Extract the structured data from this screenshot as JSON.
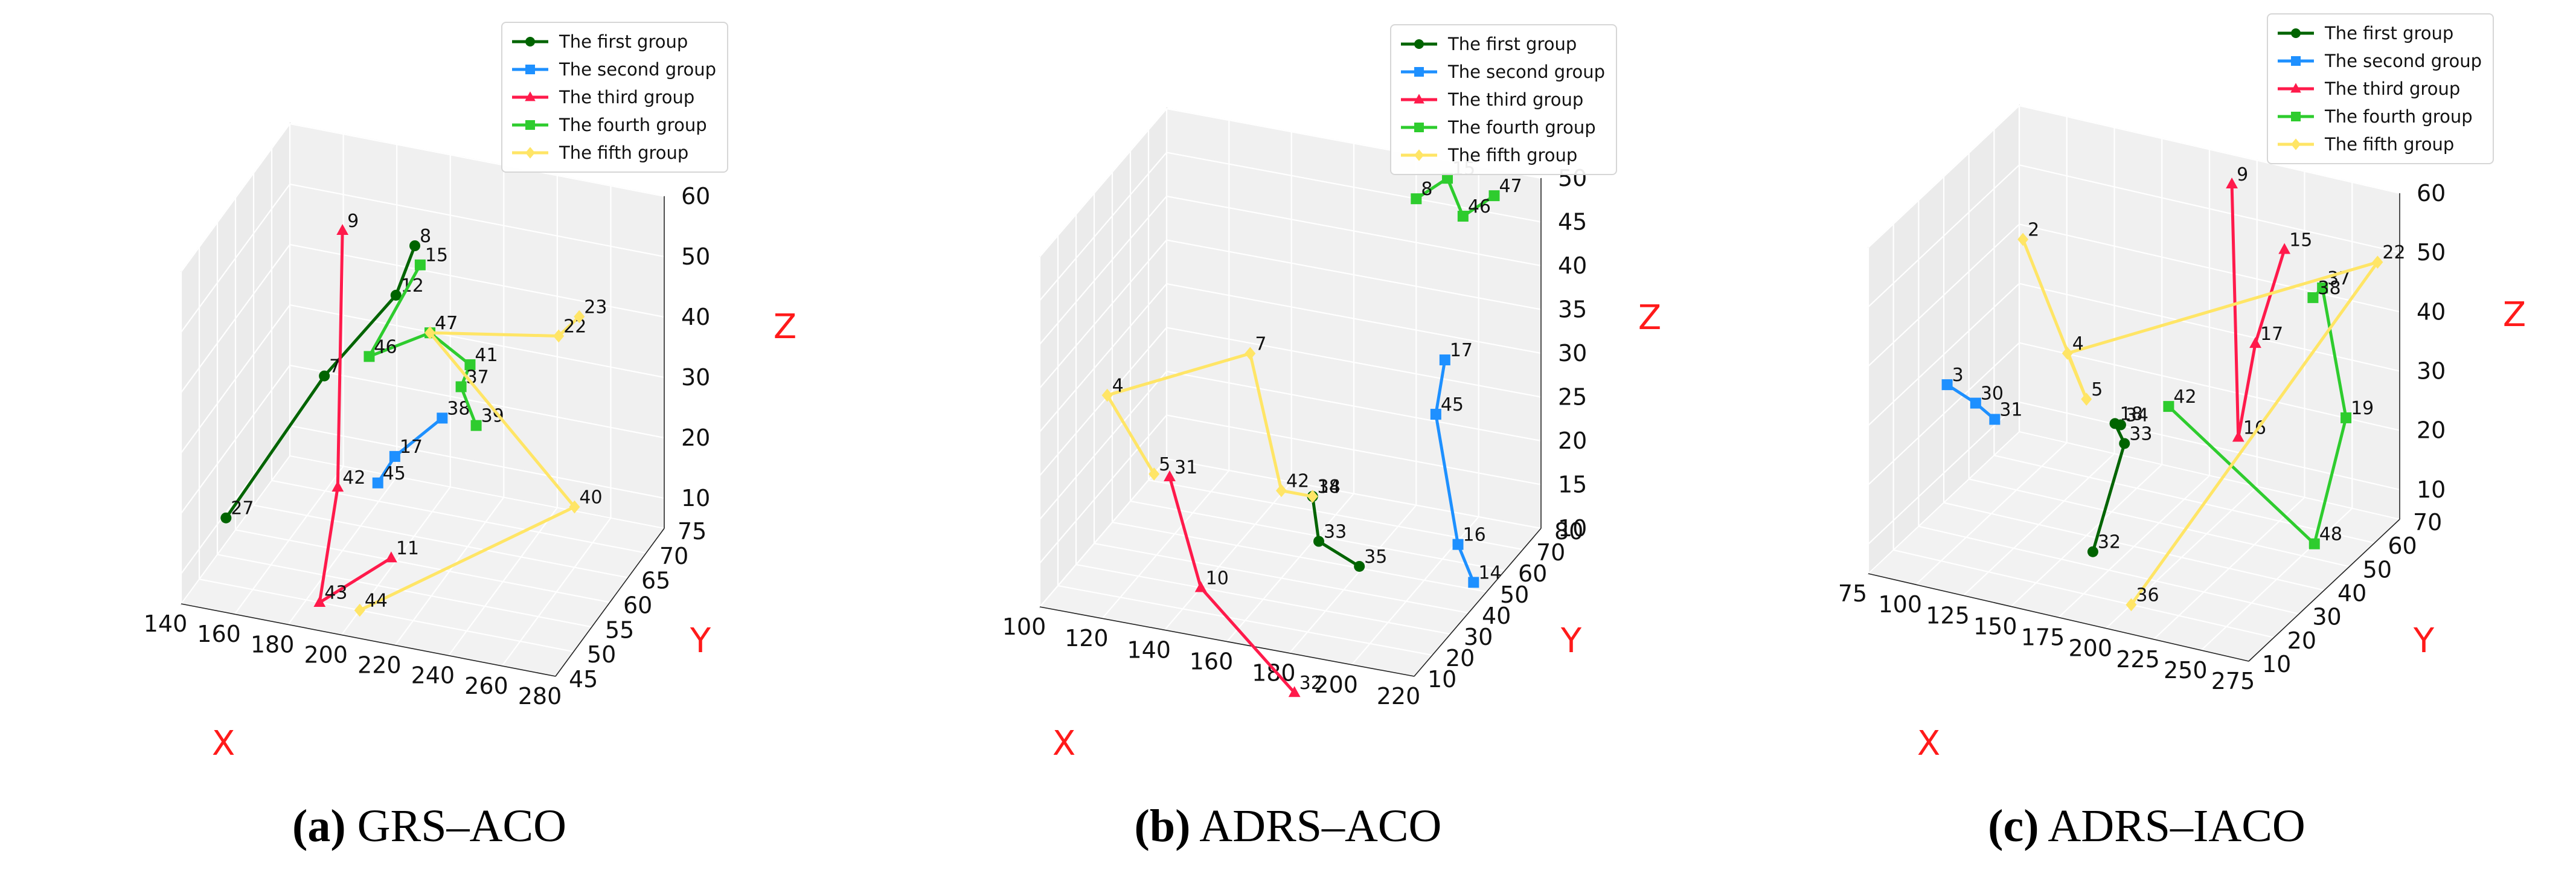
{
  "series_styles": [
    {
      "name": "The first group",
      "color": "#006400",
      "marker": "circle"
    },
    {
      "name": "The second group",
      "color": "#1e90ff",
      "marker": "square"
    },
    {
      "name": "The third group",
      "color": "#ff1a4b",
      "marker": "triangle"
    },
    {
      "name": "The fourth group",
      "color": "#2ecc2e",
      "marker": "square"
    },
    {
      "name": "The fifth group",
      "color": "#ffe566",
      "marker": "diamond"
    }
  ],
  "panels": [
    {
      "caption_tag": "(a)",
      "caption_text": " GRS–ACO"
    },
    {
      "caption_tag": "(b)",
      "caption_text": " ADRS–ACO"
    },
    {
      "caption_tag": "(c)",
      "caption_text": " ADRS–IACO"
    }
  ],
  "chart_data": [
    {
      "type": "scatter",
      "subtype": "3d-line",
      "title": "",
      "xlabel": "X",
      "ylabel": "Y",
      "zlabel": "Z",
      "xlim": [
        140,
        280
      ],
      "ylim": [
        45,
        75
      ],
      "zlim": [
        5,
        60
      ],
      "xticks": [
        140,
        160,
        180,
        200,
        220,
        240,
        260,
        280
      ],
      "yticks": [
        45,
        50,
        55,
        60,
        65,
        70,
        75
      ],
      "zticks": [
        10,
        20,
        30,
        40,
        50,
        60
      ],
      "grid": true,
      "legend_position": "top-right",
      "series": [
        {
          "name": "The first group",
          "points": [
            {
              "label": "27",
              "x": 150,
              "y": 50,
              "z": 16
            },
            {
              "label": "7",
              "x": 180,
              "y": 55,
              "z": 38
            },
            {
              "label": "12",
              "x": 200,
              "y": 60,
              "z": 49
            },
            {
              "label": "8",
              "x": 203,
              "y": 63,
              "z": 55
            }
          ]
        },
        {
          "name": "The second group",
          "points": [
            {
              "label": "45",
              "x": 200,
              "y": 55,
              "z": 22
            },
            {
              "label": "17",
              "x": 205,
              "y": 56,
              "z": 26
            },
            {
              "label": "38",
              "x": 220,
              "y": 58,
              "z": 32
            }
          ]
        },
        {
          "name": "The third group",
          "points": [
            {
              "label": "9",
              "x": 180,
              "y": 60,
              "z": 58
            },
            {
              "label": "42",
              "x": 185,
              "y": 55,
              "z": 20
            },
            {
              "label": "43",
              "x": 185,
              "y": 50,
              "z": 5
            },
            {
              "label": "11",
              "x": 205,
              "y": 55,
              "z": 10
            }
          ]
        },
        {
          "name": "The fourth group",
          "points": [
            {
              "label": "15",
              "x": 205,
              "y": 63,
              "z": 52
            },
            {
              "label": "46",
              "x": 190,
              "y": 60,
              "z": 38
            },
            {
              "label": "47",
              "x": 210,
              "y": 62,
              "z": 42
            },
            {
              "label": "41",
              "x": 225,
              "y": 62,
              "z": 38
            },
            {
              "label": "37",
              "x": 223,
              "y": 61,
              "z": 35
            },
            {
              "label": "39",
              "x": 230,
              "y": 60,
              "z": 30
            }
          ]
        },
        {
          "name": "The fifth group",
          "points": [
            {
              "label": "44",
              "x": 200,
              "y": 50,
              "z": 5
            },
            {
              "label": "40",
              "x": 260,
              "y": 65,
              "z": 15
            },
            {
              "label": "47",
              "x": 210,
              "y": 62,
              "z": 42
            },
            {
              "label": "22",
              "x": 250,
              "y": 68,
              "z": 40
            },
            {
              "label": "23",
              "x": 255,
              "y": 70,
              "z": 42
            }
          ]
        }
      ]
    },
    {
      "type": "scatter",
      "subtype": "3d-line",
      "title": "",
      "xlabel": "X",
      "ylabel": "Y",
      "zlabel": "Z",
      "xlim": [
        100,
        220
      ],
      "ylim": [
        10,
        80
      ],
      "zlim": [
        10,
        50
      ],
      "xticks": [
        100,
        120,
        140,
        160,
        180,
        200,
        220
      ],
      "yticks": [
        10,
        20,
        30,
        40,
        50,
        60,
        70,
        80
      ],
      "zticks": [
        10,
        15,
        20,
        25,
        30,
        35,
        40,
        45,
        50
      ],
      "grid": true,
      "legend_position": "top-right",
      "series": [
        {
          "name": "The first group",
          "points": [
            {
              "label": "34",
              "x": 170,
              "y": 40,
              "z": 20
            },
            {
              "label": "18",
              "x": 170,
              "y": 40,
              "z": 20
            },
            {
              "label": "33",
              "x": 172,
              "y": 40,
              "z": 15
            },
            {
              "label": "35",
              "x": 185,
              "y": 40,
              "z": 13
            }
          ]
        },
        {
          "name": "The second group",
          "points": [
            {
              "label": "17",
              "x": 195,
              "y": 70,
              "z": 30
            },
            {
              "label": "45",
              "x": 195,
              "y": 65,
              "z": 25
            },
            {
              "label": "16",
              "x": 205,
              "y": 60,
              "z": 12
            },
            {
              "label": "14",
              "x": 210,
              "y": 60,
              "z": 8
            }
          ]
        },
        {
          "name": "The third group",
          "points": [
            {
              "label": "31",
              "x": 130,
              "y": 30,
              "z": 22
            },
            {
              "label": "10",
              "x": 140,
              "y": 30,
              "z": 10
            },
            {
              "label": "32",
              "x": 170,
              "y": 30,
              "z": 0
            }
          ]
        },
        {
          "name": "The fourth group",
          "points": [
            {
              "label": "8",
              "x": 180,
              "y": 80,
              "z": 45
            },
            {
              "label": "15",
              "x": 190,
              "y": 80,
              "z": 48
            },
            {
              "label": "46",
              "x": 195,
              "y": 80,
              "z": 44
            },
            {
              "label": "47",
              "x": 205,
              "y": 80,
              "z": 47
            }
          ]
        },
        {
          "name": "The fifth group",
          "points": [
            {
              "label": "5",
              "x": 125,
              "y": 30,
              "z": 22
            },
            {
              "label": "4",
              "x": 110,
              "y": 30,
              "z": 30
            },
            {
              "label": "7",
              "x": 150,
              "y": 40,
              "z": 35
            },
            {
              "label": "42",
              "x": 160,
              "y": 40,
              "z": 20
            },
            {
              "label": "34",
              "x": 170,
              "y": 40,
              "z": 20
            }
          ]
        }
      ]
    },
    {
      "type": "scatter",
      "subtype": "3d-line",
      "title": "",
      "xlabel": "X",
      "ylabel": "Y",
      "zlabel": "Z",
      "xlim": [
        75,
        275
      ],
      "ylim": [
        10,
        70
      ],
      "zlim": [
        5,
        60
      ],
      "xticks": [
        75,
        100,
        125,
        150,
        175,
        200,
        225,
        250,
        275
      ],
      "yticks": [
        10,
        20,
        30,
        40,
        50,
        60,
        70
      ],
      "zticks": [
        10,
        20,
        30,
        40,
        50,
        60
      ],
      "grid": true,
      "legend_position": "top-right",
      "series": [
        {
          "name": "The first group",
          "points": [
            {
              "label": "32",
              "x": 160,
              "y": 35,
              "z": 5
            },
            {
              "label": "33",
              "x": 170,
              "y": 40,
              "z": 22
            },
            {
              "label": "18",
              "x": 165,
              "y": 40,
              "z": 25
            },
            {
              "label": "34",
              "x": 168,
              "y": 40,
              "z": 25
            }
          ]
        },
        {
          "name": "The second group",
          "points": [
            {
              "label": "3",
              "x": 90,
              "y": 30,
              "z": 30
            },
            {
              "label": "30",
              "x": 105,
              "y": 30,
              "z": 28
            },
            {
              "label": "31",
              "x": 115,
              "y": 30,
              "z": 26
            }
          ]
        },
        {
          "name": "The third group",
          "points": [
            {
              "label": "9",
              "x": 200,
              "y": 60,
              "z": 60
            },
            {
              "label": "16",
              "x": 210,
              "y": 55,
              "z": 20
            },
            {
              "label": "17",
              "x": 215,
              "y": 58,
              "z": 35
            },
            {
              "label": "15",
              "x": 225,
              "y": 62,
              "z": 50
            }
          ]
        },
        {
          "name": "The fourth group",
          "points": [
            {
              "label": "42",
              "x": 180,
              "y": 50,
              "z": 25
            },
            {
              "label": "48",
              "x": 250,
              "y": 55,
              "z": 5
            },
            {
              "label": "19",
              "x": 260,
              "y": 60,
              "z": 25
            },
            {
              "label": "37",
              "x": 245,
              "y": 62,
              "z": 45
            },
            {
              "label": "38",
              "x": 240,
              "y": 62,
              "z": 43
            }
          ]
        },
        {
          "name": "The fifth group",
          "points": [
            {
              "label": "36",
              "x": 200,
              "y": 20,
              "z": 5
            },
            {
              "label": "22",
              "x": 270,
              "y": 65,
              "z": 50
            },
            {
              "label": "4",
              "x": 140,
              "y": 40,
              "z": 35
            },
            {
              "label": "5",
              "x": 150,
              "y": 40,
              "z": 28
            },
            {
              "label": "2",
              "x": 110,
              "y": 45,
              "z": 50
            }
          ]
        }
      ]
    }
  ]
}
